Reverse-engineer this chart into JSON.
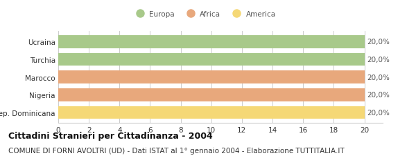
{
  "categories": [
    "Ucraina",
    "Turchia",
    "Marocco",
    "Nigeria",
    "Rep. Dominicana"
  ],
  "values": [
    20,
    20,
    20,
    20,
    20
  ],
  "bar_colors": [
    "#a8c98a",
    "#a8c98a",
    "#e8a87c",
    "#e8a87c",
    "#f5d876"
  ],
  "bar_labels": [
    "20,0%",
    "20,0%",
    "20,0%",
    "20,0%",
    "20,0%"
  ],
  "legend_entries": [
    "Europa",
    "Africa",
    "America"
  ],
  "legend_colors": [
    "#a8c98a",
    "#e8a87c",
    "#f5d876"
  ],
  "xlim": [
    0,
    20
  ],
  "xticks": [
    0,
    2,
    4,
    6,
    8,
    10,
    12,
    14,
    16,
    18,
    20
  ],
  "title": "Cittadini Stranieri per Cittadinanza - 2004",
  "subtitle": "COMUNE DI FORNI AVOLTRI (UD) - Dati ISTAT al 1° gennaio 2004 - Elaborazione TUTTITALIA.IT",
  "title_fontsize": 9,
  "subtitle_fontsize": 7.5,
  "background_color": "#ffffff",
  "grid_color": "#cccccc",
  "bar_height": 0.72,
  "label_fontsize": 7.5,
  "tick_fontsize": 7.5
}
